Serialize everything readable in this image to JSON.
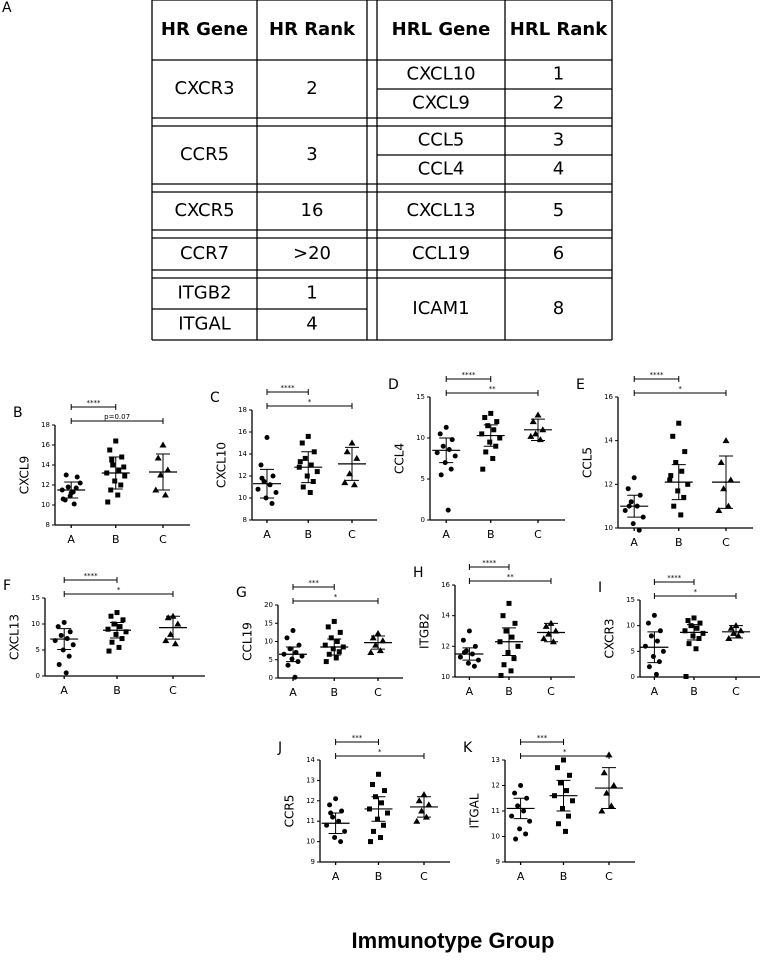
{
  "panel_label": "A",
  "table": {
    "columns": [
      "HR Gene",
      "HR Rank",
      "HRL Gene",
      "HRL Rank"
    ],
    "blocks": [
      {
        "hr": [
          [
            "CXCR3",
            2
          ]
        ],
        "hrl": [
          [
            "CXCL10",
            1
          ],
          [
            "CXCL9",
            2
          ]
        ]
      },
      {
        "hr": [
          [
            "CCR5",
            3
          ]
        ],
        "hrl": [
          [
            "CCL5",
            3
          ],
          [
            "CCL4",
            4
          ]
        ]
      },
      {
        "hr": [
          [
            "CXCR5",
            16
          ]
        ],
        "hrl": [
          [
            "CXCL13",
            5
          ]
        ]
      },
      {
        "hr": [
          [
            "CCR7",
            ">20"
          ]
        ],
        "hrl": [
          [
            "CCL19",
            6
          ]
        ]
      },
      {
        "hr": [
          [
            "ITGB2",
            1
          ],
          [
            "ITGAL",
            4
          ]
        ],
        "hrl": [
          [
            "ICAM1",
            8
          ]
        ]
      }
    ]
  },
  "chart_data": [
    {
      "type": "strip",
      "panel": "B",
      "ylabel": "CXCL9",
      "categories": [
        "A",
        "B",
        "C"
      ],
      "ylim": [
        8,
        18
      ],
      "yticks": [
        8,
        10,
        12,
        14,
        16,
        18
      ],
      "series": [
        {
          "marker": "circle",
          "color": "#000000",
          "values": [
            11.2,
            10.5,
            12.8,
            11.8,
            10.1,
            11.5,
            12.2,
            10.9,
            11.7,
            13.0,
            11.3,
            10.6
          ],
          "mean": 11.5,
          "sd": 0.8
        },
        {
          "marker": "square",
          "color": "#000000",
          "values": [
            16.4,
            15.5,
            14.8,
            14.0,
            13.5,
            13.2,
            12.9,
            12.4,
            12.0,
            11.5,
            11.0,
            10.3,
            13.8,
            14.5
          ],
          "mean": 13.2,
          "sd": 1.6
        },
        {
          "marker": "triangle",
          "color": "#000000",
          "values": [
            16.0,
            14.7,
            13.5,
            13.0,
            11.0,
            11.5
          ],
          "mean": 13.3,
          "sd": 1.8
        }
      ],
      "significance": [
        {
          "pair": [
            "A",
            "B"
          ],
          "label": "****"
        },
        {
          "pair": [
            "A",
            "C"
          ],
          "label": "p=0.07"
        }
      ]
    },
    {
      "type": "strip",
      "panel": "C",
      "ylabel": "CXCL10",
      "categories": [
        "A",
        "B",
        "C"
      ],
      "ylim": [
        8,
        18
      ],
      "yticks": [
        8,
        10,
        12,
        14,
        16,
        18
      ],
      "series": [
        {
          "marker": "circle",
          "color": "#000000",
          "values": [
            15.5,
            13.0,
            12.0,
            11.5,
            11.2,
            10.8,
            10.5,
            10.0,
            9.5,
            11.8
          ],
          "mean": 11.3,
          "sd": 1.3
        },
        {
          "marker": "square",
          "color": "#000000",
          "values": [
            15.6,
            15.0,
            14.2,
            13.6,
            13.0,
            12.8,
            12.4,
            12.0,
            11.5,
            11.0,
            10.5,
            13.3
          ],
          "mean": 12.8,
          "sd": 1.4
        },
        {
          "marker": "triangle",
          "color": "#000000",
          "values": [
            15.0,
            14.2,
            13.6,
            12.2,
            11.2,
            11.4
          ],
          "mean": 13.1,
          "sd": 1.5
        }
      ],
      "significance": [
        {
          "pair": [
            "A",
            "B"
          ],
          "label": "****"
        },
        {
          "pair": [
            "A",
            "C"
          ],
          "label": "*"
        }
      ]
    },
    {
      "type": "strip",
      "panel": "D",
      "ylabel": "CCL4",
      "categories": [
        "A",
        "B",
        "C"
      ],
      "ylim": [
        0,
        15
      ],
      "yticks": [
        0,
        5,
        10,
        15
      ],
      "series": [
        {
          "marker": "circle",
          "color": "#000000",
          "values": [
            11.3,
            10.5,
            9.8,
            9.0,
            8.6,
            8.2,
            7.8,
            7.0,
            6.2,
            5.5,
            1.2
          ],
          "mean": 8.5,
          "sd": 1.5
        },
        {
          "marker": "square",
          "color": "#000000",
          "values": [
            13.0,
            12.5,
            12.0,
            11.5,
            11.0,
            10.5,
            10.0,
            9.5,
            9.0,
            8.3,
            7.5,
            6.2
          ],
          "mean": 10.3,
          "sd": 1.3
        },
        {
          "marker": "triangle",
          "color": "#000000",
          "values": [
            12.8,
            12.0,
            11.0,
            10.5,
            9.8,
            10.2
          ],
          "mean": 11.0,
          "sd": 1.3
        }
      ],
      "significance": [
        {
          "pair": [
            "A",
            "B"
          ],
          "label": "****"
        },
        {
          "pair": [
            "A",
            "C"
          ],
          "label": "**"
        }
      ]
    },
    {
      "type": "strip",
      "panel": "E",
      "ylabel": "CCL5",
      "categories": [
        "A",
        "B",
        "C"
      ],
      "ylim": [
        10,
        16
      ],
      "yticks": [
        10,
        12,
        14,
        16
      ],
      "series": [
        {
          "marker": "circle",
          "color": "#000000",
          "values": [
            12.3,
            11.8,
            11.5,
            11.2,
            11.0,
            10.8,
            10.5,
            10.2,
            9.9,
            11.0
          ],
          "mean": 11.0,
          "sd": 0.5
        },
        {
          "marker": "square",
          "color": "#000000",
          "values": [
            14.8,
            14.2,
            13.5,
            13.0,
            12.6,
            12.2,
            12.0,
            11.7,
            11.4,
            11.0,
            10.6,
            12.4
          ],
          "mean": 12.1,
          "sd": 0.8
        },
        {
          "marker": "triangle",
          "color": "#000000",
          "values": [
            14.0,
            13.0,
            12.2,
            11.8,
            11.0,
            10.8
          ],
          "mean": 12.1,
          "sd": 1.2
        }
      ],
      "significance": [
        {
          "pair": [
            "A",
            "B"
          ],
          "label": "****"
        },
        {
          "pair": [
            "A",
            "C"
          ],
          "label": "*"
        }
      ]
    },
    {
      "type": "strip",
      "panel": "F",
      "ylabel": "CXCL13",
      "categories": [
        "A",
        "B",
        "C"
      ],
      "ylim": [
        0,
        15
      ],
      "yticks": [
        0,
        5,
        10,
        15
      ],
      "series": [
        {
          "marker": "circle",
          "color": "#000000",
          "values": [
            10.3,
            9.5,
            8.5,
            7.8,
            7.2,
            6.8,
            6.0,
            5.0,
            3.8,
            2.2,
            0.6
          ],
          "mean": 7.1,
          "sd": 2.0
        },
        {
          "marker": "square",
          "color": "#000000",
          "values": [
            12.2,
            11.5,
            10.8,
            10.0,
            9.5,
            9.0,
            8.5,
            8.0,
            7.2,
            6.5,
            5.5,
            4.8
          ],
          "mean": 8.8,
          "sd": 1.5
        },
        {
          "marker": "triangle",
          "color": "#000000",
          "values": [
            11.5,
            11.2,
            10.0,
            8.0,
            6.2,
            6.8
          ],
          "mean": 9.3,
          "sd": 2.2
        }
      ],
      "significance": [
        {
          "pair": [
            "A",
            "B"
          ],
          "label": "****"
        },
        {
          "pair": [
            "A",
            "C"
          ],
          "label": "*"
        }
      ]
    },
    {
      "type": "strip",
      "panel": "G",
      "ylabel": "CCL19",
      "categories": [
        "A",
        "B",
        "C"
      ],
      "ylim": [
        0,
        20
      ],
      "yticks": [
        0,
        5,
        10,
        15,
        20
      ],
      "series": [
        {
          "marker": "circle",
          "color": "#000000",
          "values": [
            13.0,
            11.0,
            9.0,
            8.0,
            7.0,
            6.5,
            6.0,
            5.2,
            4.5,
            3.5,
            0.2
          ],
          "mean": 6.5,
          "sd": 2.0
        },
        {
          "marker": "square",
          "color": "#000000",
          "values": [
            15.5,
            14.0,
            12.5,
            11.0,
            10.0,
            9.0,
            8.5,
            8.0,
            7.2,
            6.5,
            5.5,
            4.5
          ],
          "mean": 8.5,
          "sd": 2.2
        },
        {
          "marker": "triangle",
          "color": "#000000",
          "values": [
            12.2,
            11.0,
            10.2,
            9.0,
            7.5,
            7.0
          ],
          "mean": 9.7,
          "sd": 1.8
        }
      ],
      "significance": [
        {
          "pair": [
            "A",
            "B"
          ],
          "label": "***"
        },
        {
          "pair": [
            "A",
            "C"
          ],
          "label": "*"
        }
      ]
    },
    {
      "type": "strip",
      "panel": "H",
      "ylabel": "ITGB2",
      "categories": [
        "A",
        "B",
        "C"
      ],
      "ylim": [
        10,
        16
      ],
      "yticks": [
        10,
        12,
        14,
        16
      ],
      "series": [
        {
          "marker": "circle",
          "color": "#000000",
          "values": [
            13.0,
            12.4,
            12.0,
            11.7,
            11.5,
            11.3,
            11.1,
            10.9,
            10.7,
            11.6
          ],
          "mean": 11.5,
          "sd": 0.4
        },
        {
          "marker": "square",
          "color": "#000000",
          "values": [
            14.8,
            14.0,
            13.5,
            13.0,
            12.6,
            12.3,
            12.0,
            11.6,
            11.2,
            10.8,
            10.4,
            10.1
          ],
          "mean": 12.3,
          "sd": 0.9
        },
        {
          "marker": "triangle",
          "color": "#000000",
          "values": [
            13.5,
            13.3,
            13.0,
            12.8,
            12.3,
            12.5
          ],
          "mean": 12.9,
          "sd": 0.6
        }
      ],
      "significance": [
        {
          "pair": [
            "A",
            "B"
          ],
          "label": "****"
        },
        {
          "pair": [
            "A",
            "C"
          ],
          "label": "**"
        }
      ]
    },
    {
      "type": "strip",
      "panel": "I",
      "ylabel": "CXCR3",
      "categories": [
        "A",
        "B",
        "C"
      ],
      "ylim": [
        0,
        15
      ],
      "yticks": [
        0,
        5,
        10,
        15
      ],
      "series": [
        {
          "marker": "circle",
          "color": "#000000",
          "values": [
            12.0,
            10.5,
            9.0,
            8.0,
            7.0,
            6.0,
            5.0,
            4.0,
            3.0,
            2.0,
            0.5
          ],
          "mean": 5.8,
          "sd": 3.0
        },
        {
          "marker": "square",
          "color": "#000000",
          "values": [
            11.5,
            11.0,
            10.5,
            10.0,
            9.5,
            9.0,
            8.5,
            8.0,
            7.5,
            6.5,
            5.5,
            0.1
          ],
          "mean": 8.7,
          "sd": 1.5
        },
        {
          "marker": "triangle",
          "color": "#000000",
          "values": [
            10.0,
            9.5,
            9.0,
            8.5,
            8.0,
            7.5
          ],
          "mean": 8.8,
          "sd": 1.2
        }
      ],
      "significance": [
        {
          "pair": [
            "A",
            "B"
          ],
          "label": "****"
        },
        {
          "pair": [
            "A",
            "C"
          ],
          "label": "*"
        }
      ]
    },
    {
      "type": "strip",
      "panel": "J",
      "ylabel": "CCR5",
      "categories": [
        "A",
        "B",
        "C"
      ],
      "ylim": [
        9,
        14
      ],
      "yticks": [
        9,
        10,
        11,
        12,
        13,
        14
      ],
      "series": [
        {
          "marker": "circle",
          "color": "#000000",
          "values": [
            12.1,
            11.8,
            11.5,
            11.2,
            11.0,
            10.8,
            10.5,
            10.2,
            10.0,
            11.4
          ],
          "mean": 10.9,
          "sd": 0.5
        },
        {
          "marker": "square",
          "color": "#000000",
          "values": [
            13.3,
            12.8,
            12.5,
            12.2,
            11.9,
            11.6,
            11.4,
            11.1,
            10.8,
            10.5,
            10.2,
            10.0
          ],
          "mean": 11.6,
          "sd": 0.6
        },
        {
          "marker": "triangle",
          "color": "#000000",
          "values": [
            12.3,
            12.0,
            11.8,
            11.5,
            11.2,
            11.0
          ],
          "mean": 11.7,
          "sd": 0.5
        }
      ],
      "significance": [
        {
          "pair": [
            "A",
            "B"
          ],
          "label": "***"
        },
        {
          "pair": [
            "A",
            "C"
          ],
          "label": "*"
        }
      ]
    },
    {
      "type": "strip",
      "panel": "K",
      "ylabel": "ITGAL",
      "categories": [
        "A",
        "B",
        "C"
      ],
      "ylim": [
        9,
        13
      ],
      "yticks": [
        9,
        10,
        11,
        12,
        13
      ],
      "series": [
        {
          "marker": "circle",
          "color": "#000000",
          "values": [
            12.0,
            11.7,
            11.5,
            11.2,
            11.0,
            10.8,
            10.6,
            10.3,
            10.1,
            9.9
          ],
          "mean": 11.1,
          "sd": 0.4
        },
        {
          "marker": "square",
          "color": "#000000",
          "values": [
            13.0,
            12.7,
            12.4,
            12.1,
            11.8,
            11.6,
            11.4,
            11.1,
            10.8,
            10.5,
            10.2
          ],
          "mean": 11.6,
          "sd": 0.6
        },
        {
          "marker": "triangle",
          "color": "#000000",
          "values": [
            13.2,
            12.5,
            12.0,
            11.7,
            11.2,
            11.0
          ],
          "mean": 11.9,
          "sd": 0.8
        }
      ],
      "significance": [
        {
          "pair": [
            "A",
            "B"
          ],
          "label": "***"
        },
        {
          "pair": [
            "A",
            "C"
          ],
          "label": "*"
        }
      ]
    }
  ],
  "x_axis_title": "Immunotype Group"
}
